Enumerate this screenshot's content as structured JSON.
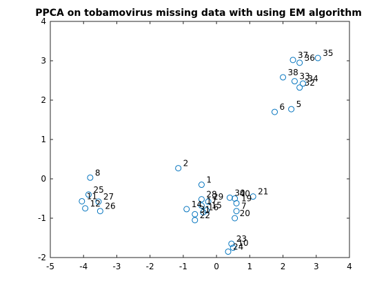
{
  "chart_data": {
    "type": "scatter",
    "title": "PPCA on tobamovirus missing data with using EM algorithm",
    "xlabel": "",
    "ylabel": "",
    "xlim": [
      -5,
      4
    ],
    "ylim": [
      -2,
      4
    ],
    "xticks": [
      -5,
      -4,
      -3,
      -2,
      -1,
      0,
      1,
      2,
      3,
      4
    ],
    "yticks": [
      -2,
      -1,
      0,
      1,
      2,
      3,
      4
    ],
    "grid": false,
    "marker_color": "#0072bd",
    "points": [
      {
        "label": "1",
        "x": -0.45,
        "y": -0.15
      },
      {
        "label": "2",
        "x": -1.15,
        "y": 0.27
      },
      {
        "label": "5",
        "x": 2.25,
        "y": 1.77
      },
      {
        "label": "6",
        "x": 1.75,
        "y": 1.7
      },
      {
        "label": "7",
        "x": 0.6,
        "y": -0.82
      },
      {
        "label": "8",
        "x": -3.8,
        "y": 0.03
      },
      {
        "label": "10",
        "x": 0.5,
        "y": -1.75
      },
      {
        "label": "11",
        "x": -4.05,
        "y": -0.57
      },
      {
        "label": "12",
        "x": -3.95,
        "y": -0.75
      },
      {
        "label": "14",
        "x": -0.9,
        "y": -0.77
      },
      {
        "label": "15",
        "x": -0.3,
        "y": -0.8
      },
      {
        "label": "16",
        "x": -0.4,
        "y": -0.85
      },
      {
        "label": "17",
        "x": -0.45,
        "y": -0.68
      },
      {
        "label": "19",
        "x": 0.6,
        "y": -0.62
      },
      {
        "label": "20",
        "x": 0.55,
        "y": -1.0
      },
      {
        "label": "21",
        "x": 1.1,
        "y": -0.45
      },
      {
        "label": "22",
        "x": -0.65,
        "y": -1.05
      },
      {
        "label": "23",
        "x": 0.45,
        "y": -1.65
      },
      {
        "label": "24",
        "x": 0.35,
        "y": -1.85
      },
      {
        "label": "25",
        "x": -3.85,
        "y": -0.4
      },
      {
        "label": "26",
        "x": -3.5,
        "y": -0.82
      },
      {
        "label": "27",
        "x": -3.55,
        "y": -0.58
      },
      {
        "label": "28",
        "x": -0.45,
        "y": -0.52
      },
      {
        "label": "29",
        "x": -0.25,
        "y": -0.58
      },
      {
        "label": "30",
        "x": 0.4,
        "y": -0.48
      },
      {
        "label": "31",
        "x": -0.65,
        "y": -0.9
      },
      {
        "label": "32",
        "x": 2.5,
        "y": 2.32
      },
      {
        "label": "33",
        "x": 2.35,
        "y": 2.48
      },
      {
        "label": "34",
        "x": 2.6,
        "y": 2.42
      },
      {
        "label": "35",
        "x": 3.05,
        "y": 3.07
      },
      {
        "label": "36",
        "x": 2.5,
        "y": 2.95
      },
      {
        "label": "37",
        "x": 2.3,
        "y": 3.02
      },
      {
        "label": "38",
        "x": 2.0,
        "y": 2.58
      },
      {
        "label": "40",
        "x": 0.55,
        "y": -0.5
      }
    ]
  }
}
